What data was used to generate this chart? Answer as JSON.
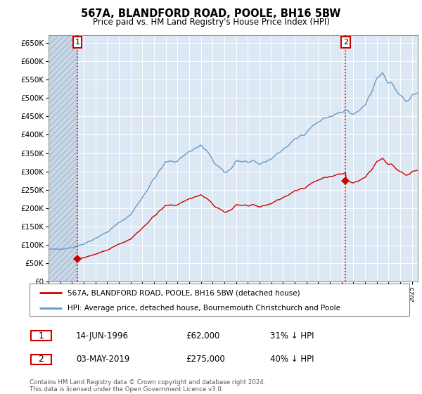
{
  "title1": "567A, BLANDFORD ROAD, POOLE, BH16 5BW",
  "title2": "Price paid vs. HM Land Registry's House Price Index (HPI)",
  "ylim": [
    0,
    670000
  ],
  "yticks": [
    0,
    50000,
    100000,
    150000,
    200000,
    250000,
    300000,
    350000,
    400000,
    450000,
    500000,
    550000,
    600000,
    650000
  ],
  "ytick_labels": [
    "£0",
    "£50K",
    "£100K",
    "£150K",
    "£200K",
    "£250K",
    "£300K",
    "£350K",
    "£400K",
    "£450K",
    "£500K",
    "£550K",
    "£600K",
    "£650K"
  ],
  "xlim_left": 1994.0,
  "xlim_right": 2025.5,
  "purchase1_x": 1996.45,
  "purchase1_y": 62000,
  "purchase2_x": 2019.34,
  "purchase2_y": 275000,
  "legend_line1": "567A, BLANDFORD ROAD, POOLE, BH16 5BW (detached house)",
  "legend_line2": "HPI: Average price, detached house, Bournemouth Christchurch and Poole",
  "annotation1_label": "1",
  "annotation2_label": "2",
  "annotation1_info": "14-JUN-1996",
  "annotation1_price": "£62,000",
  "annotation1_hpi": "31% ↓ HPI",
  "annotation2_info": "03-MAY-2019",
  "annotation2_price": "£275,000",
  "annotation2_hpi": "40% ↓ HPI",
  "footer": "Contains HM Land Registry data © Crown copyright and database right 2024.\nThis data is licensed under the Open Government Licence v3.0.",
  "line_color_property": "#cc0000",
  "line_color_hpi": "#6699cc",
  "plot_bg_color": "#dde8f5",
  "hatch_facecolor": "#c8d8e8",
  "grid_color": "#ffffff",
  "bg_color": "#ffffff",
  "annotation_box_color": "#cc0000"
}
